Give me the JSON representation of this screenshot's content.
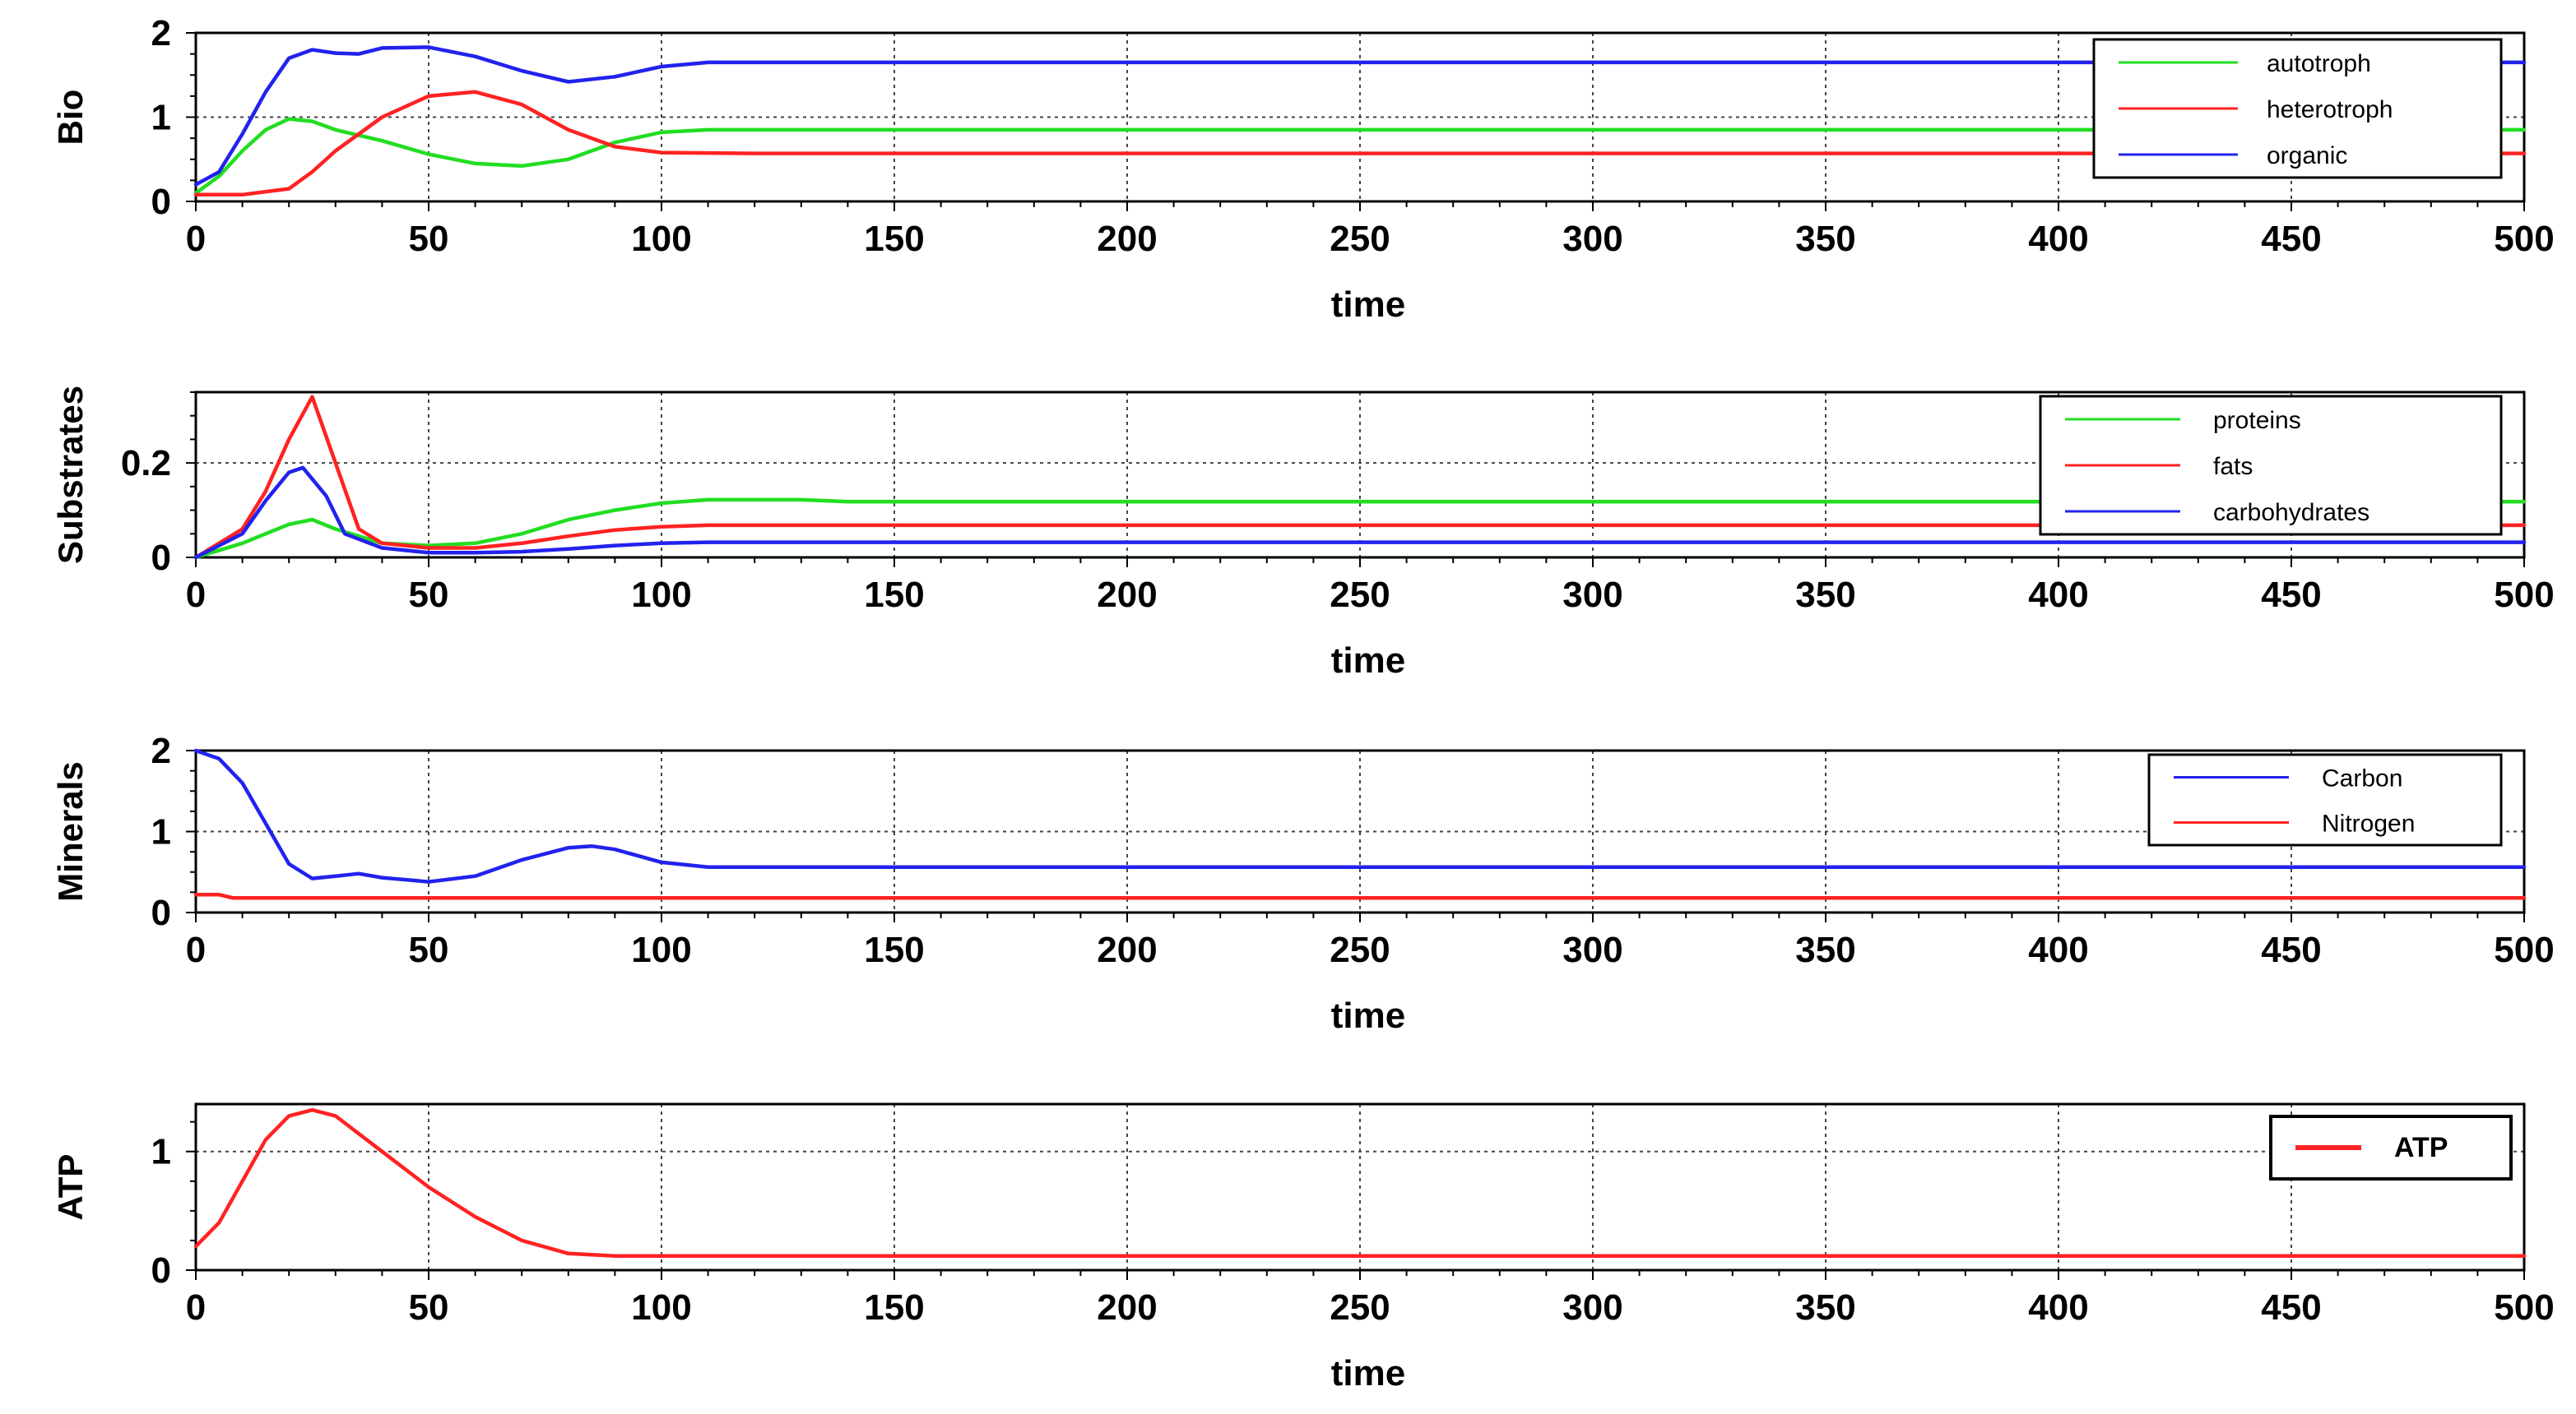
{
  "chart_data": [
    {
      "type": "line",
      "ylabel": "Bio",
      "xlabel": "time",
      "xlim": [
        0,
        500
      ],
      "ylim": [
        0,
        2
      ],
      "xticks": [
        0,
        50,
        100,
        150,
        200,
        250,
        300,
        350,
        400,
        450,
        500
      ],
      "yticks": [
        0,
        1,
        2
      ],
      "grid": true,
      "legend_position": "top-right",
      "series": [
        {
          "name": "autotroph",
          "color": "#22dd22",
          "x": [
            0,
            5,
            10,
            15,
            20,
            25,
            30,
            40,
            50,
            60,
            70,
            80,
            90,
            100,
            110,
            500
          ],
          "y": [
            0.1,
            0.3,
            0.6,
            0.85,
            0.98,
            0.95,
            0.85,
            0.72,
            0.56,
            0.45,
            0.42,
            0.5,
            0.7,
            0.82,
            0.85,
            0.85
          ]
        },
        {
          "name": "heterotroph",
          "color": "#ff2222",
          "x": [
            0,
            10,
            20,
            25,
            30,
            40,
            50,
            60,
            70,
            80,
            90,
            100,
            120,
            500
          ],
          "y": [
            0.08,
            0.08,
            0.15,
            0.35,
            0.6,
            1.0,
            1.25,
            1.3,
            1.15,
            0.85,
            0.65,
            0.58,
            0.57,
            0.57
          ]
        },
        {
          "name": "organic",
          "color": "#2222ee",
          "x": [
            0,
            5,
            10,
            15,
            20,
            25,
            30,
            35,
            40,
            50,
            60,
            70,
            80,
            90,
            100,
            110,
            500
          ],
          "y": [
            0.2,
            0.35,
            0.8,
            1.3,
            1.7,
            1.8,
            1.76,
            1.75,
            1.82,
            1.83,
            1.72,
            1.55,
            1.42,
            1.48,
            1.6,
            1.65,
            1.65
          ]
        }
      ]
    },
    {
      "type": "line",
      "ylabel": "Substrates",
      "xlabel": "time",
      "xlim": [
        0,
        500
      ],
      "ylim": [
        0,
        0.35
      ],
      "xticks": [
        0,
        50,
        100,
        150,
        200,
        250,
        300,
        350,
        400,
        450,
        500
      ],
      "yticks": [
        0,
        0.2
      ],
      "ytick_labels": [
        "0",
        "0.2"
      ],
      "grid": true,
      "legend_position": "top-right",
      "series": [
        {
          "name": "proteins",
          "color": "#22dd22",
          "x": [
            0,
            10,
            20,
            25,
            30,
            40,
            50,
            60,
            70,
            80,
            90,
            100,
            110,
            130,
            140,
            500
          ],
          "y": [
            0.0,
            0.03,
            0.07,
            0.08,
            0.06,
            0.03,
            0.025,
            0.03,
            0.05,
            0.08,
            0.1,
            0.115,
            0.122,
            0.122,
            0.118,
            0.118
          ]
        },
        {
          "name": "fats",
          "color": "#ff2222",
          "x": [
            0,
            10,
            15,
            20,
            25,
            30,
            35,
            40,
            50,
            60,
            70,
            80,
            90,
            100,
            110,
            500
          ],
          "y": [
            0.0,
            0.06,
            0.14,
            0.25,
            0.34,
            0.2,
            0.06,
            0.03,
            0.02,
            0.02,
            0.03,
            0.045,
            0.058,
            0.065,
            0.068,
            0.068
          ]
        },
        {
          "name": "carbohydrates",
          "color": "#2222ee",
          "x": [
            0,
            10,
            15,
            20,
            23,
            28,
            32,
            40,
            50,
            60,
            70,
            80,
            90,
            100,
            110,
            500
          ],
          "y": [
            0.0,
            0.05,
            0.12,
            0.18,
            0.19,
            0.13,
            0.05,
            0.02,
            0.01,
            0.01,
            0.012,
            0.018,
            0.025,
            0.03,
            0.032,
            0.032
          ]
        }
      ]
    },
    {
      "type": "line",
      "ylabel": "Minerals",
      "xlabel": "time",
      "xlim": [
        0,
        500
      ],
      "ylim": [
        0,
        2
      ],
      "xticks": [
        0,
        50,
        100,
        150,
        200,
        250,
        300,
        350,
        400,
        450,
        500
      ],
      "yticks": [
        0,
        1,
        2
      ],
      "grid": true,
      "legend_position": "top-right",
      "series": [
        {
          "name": "Carbon",
          "color": "#2222ee",
          "x": [
            0,
            5,
            10,
            15,
            20,
            25,
            30,
            35,
            40,
            50,
            60,
            70,
            80,
            85,
            90,
            100,
            110,
            500
          ],
          "y": [
            2.0,
            1.9,
            1.6,
            1.1,
            0.6,
            0.42,
            0.45,
            0.48,
            0.43,
            0.38,
            0.45,
            0.65,
            0.8,
            0.82,
            0.78,
            0.62,
            0.56,
            0.56
          ]
        },
        {
          "name": "Nitrogen",
          "color": "#ff2222",
          "x": [
            0,
            5,
            8,
            500
          ],
          "y": [
            0.22,
            0.22,
            0.18,
            0.18
          ]
        }
      ]
    },
    {
      "type": "line",
      "ylabel": "ATP",
      "xlabel": "time",
      "xlim": [
        0,
        500
      ],
      "ylim": [
        0,
        1.4
      ],
      "xticks": [
        0,
        50,
        100,
        150,
        200,
        250,
        300,
        350,
        400,
        450,
        500
      ],
      "yticks": [
        0,
        1
      ],
      "grid": true,
      "legend_position": "top-right",
      "series": [
        {
          "name": "ATP",
          "color": "#ff2222",
          "x": [
            0,
            5,
            10,
            15,
            20,
            25,
            30,
            40,
            50,
            60,
            70,
            80,
            90,
            500
          ],
          "y": [
            0.2,
            0.4,
            0.75,
            1.1,
            1.3,
            1.35,
            1.3,
            1.0,
            0.7,
            0.45,
            0.25,
            0.14,
            0.12,
            0.12
          ]
        }
      ]
    }
  ]
}
